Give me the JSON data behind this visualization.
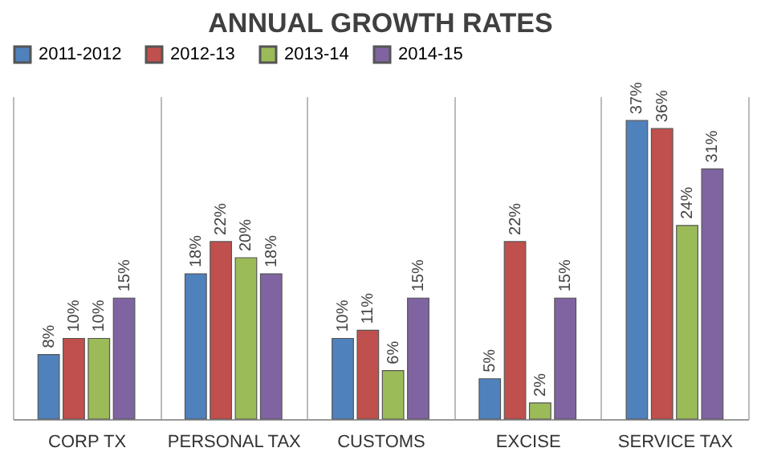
{
  "chart_data": {
    "type": "bar",
    "title": "ANNUAL GROWTH RATES",
    "categories": [
      "CORP TX",
      "PERSONAL TAX",
      "CUSTOMS",
      "EXCISE",
      "SERVICE TAX"
    ],
    "legend": "top",
    "series": [
      {
        "name": "2011-2012",
        "color": "#4f81bd",
        "values": [
          8,
          18,
          10,
          5,
          37
        ],
        "value_labels": [
          "8%",
          "18%",
          "10%",
          "5%",
          "37%"
        ]
      },
      {
        "name": "2012-13",
        "color": "#c0504d",
        "values": [
          10,
          22,
          11,
          22,
          36
        ],
        "value_labels": [
          "10%",
          "22%",
          "11%",
          "22%",
          "36%"
        ]
      },
      {
        "name": "2013-14",
        "color": "#9bbb59",
        "values": [
          10,
          20,
          6,
          2,
          24
        ],
        "value_labels": [
          "10%",
          "20%",
          "6%",
          "2%",
          "24%"
        ]
      },
      {
        "name": "2014-15",
        "color": "#8064a2",
        "values": [
          15,
          18,
          15,
          15,
          31
        ],
        "value_labels": [
          "15%",
          "18%",
          "15%",
          "15%",
          "31%"
        ]
      }
    ]
  }
}
